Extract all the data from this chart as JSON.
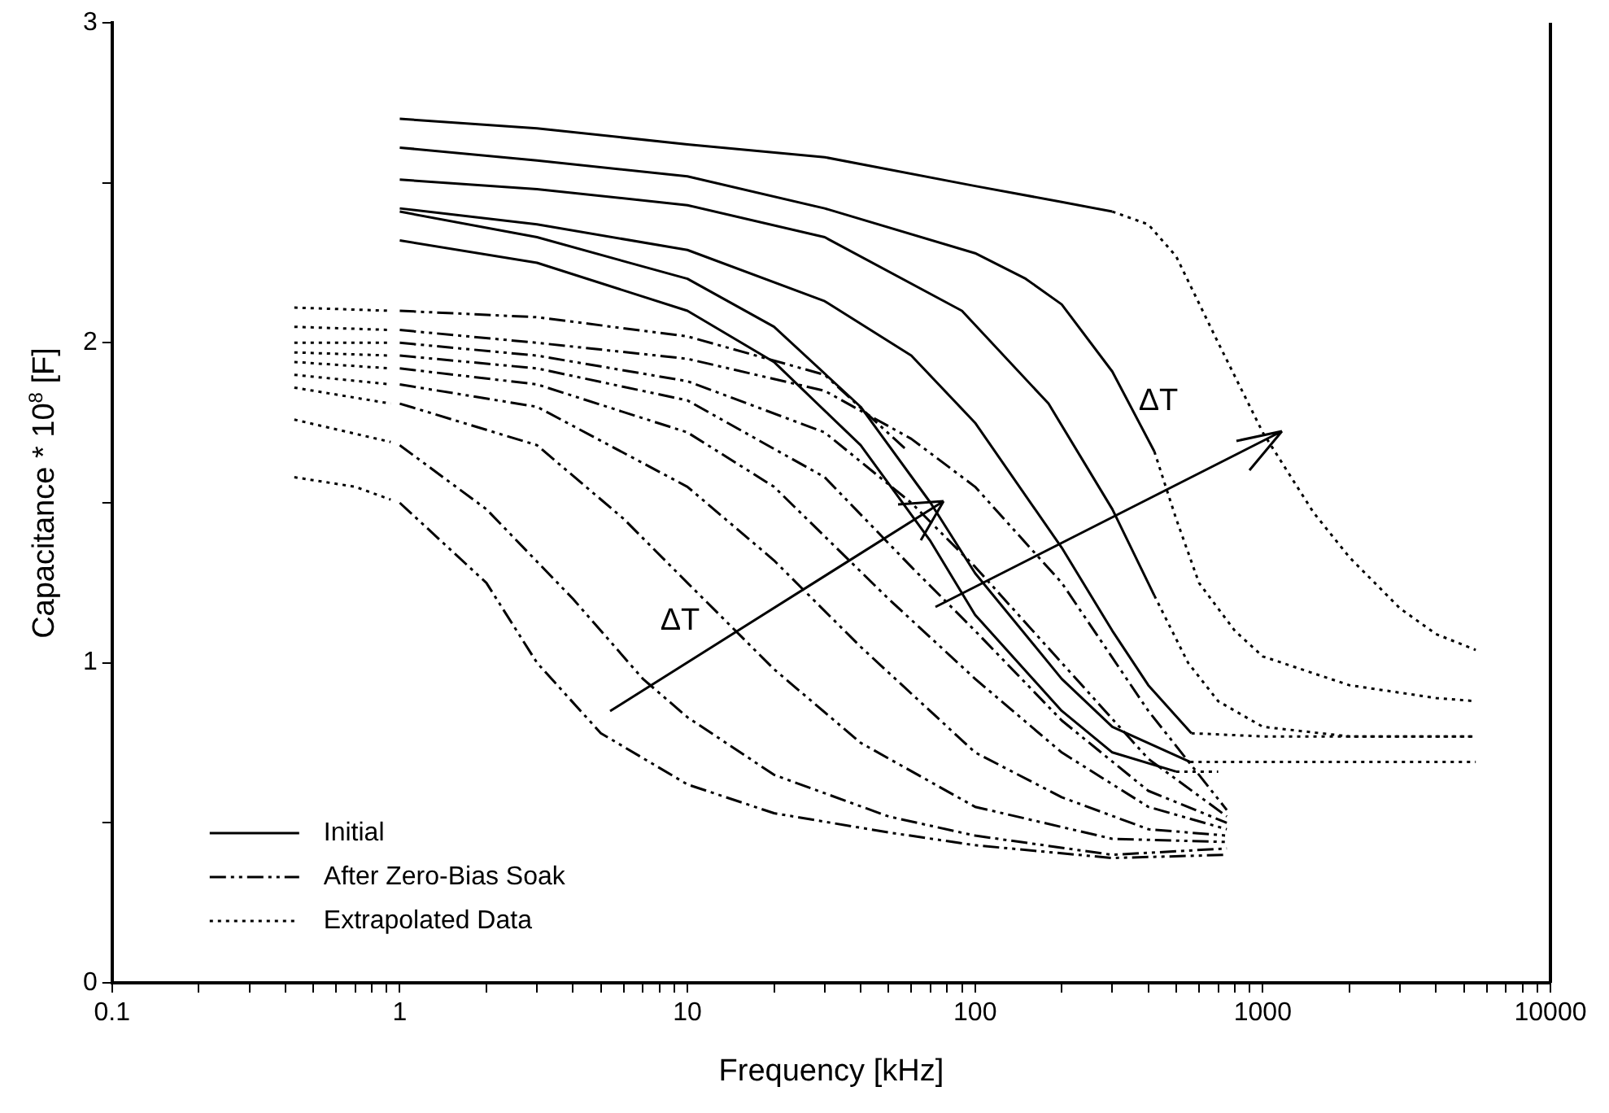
{
  "chart_data": {
    "type": "line",
    "xlabel": "Frequency [kHz]",
    "ylabel": "Capacitance * 10$^{8}$ [F]",
    "log": "x",
    "xlim": [
      0.1,
      10000
    ],
    "ylim": [
      0,
      3
    ],
    "xticks": [
      0.1,
      {
        "value": 0.2,
        "label": null
      },
      {
        "value": 0.3,
        "label": null
      },
      {
        "value": 0.4,
        "label": null
      },
      {
        "value": 0.5,
        "label": null
      },
      {
        "value": 0.6,
        "label": null
      },
      {
        "value": 0.7,
        "label": null
      },
      {
        "value": 0.8,
        "label": null
      },
      {
        "value": 0.9,
        "label": null
      },
      1,
      {
        "value": 2,
        "label": null
      },
      {
        "value": 3,
        "label": null
      },
      {
        "value": 4,
        "label": null
      },
      {
        "value": 5,
        "label": null
      },
      {
        "value": 6,
        "label": null
      },
      {
        "value": 7,
        "label": null
      },
      {
        "value": 8,
        "label": null
      },
      {
        "value": 9,
        "label": null
      },
      10,
      {
        "value": 20,
        "label": null
      },
      {
        "value": 30,
        "label": null
      },
      {
        "value": 40,
        "label": null
      },
      {
        "value": 50,
        "label": null
      },
      {
        "value": 60,
        "label": null
      },
      {
        "value": 70,
        "label": null
      },
      {
        "value": 80,
        "label": null
      },
      {
        "value": 90,
        "label": null
      },
      100,
      {
        "value": 200,
        "label": null
      },
      {
        "value": 300,
        "label": null
      },
      {
        "value": 400,
        "label": null
      },
      {
        "value": 500,
        "label": null
      },
      {
        "value": 600,
        "label": null
      },
      {
        "value": 700,
        "label": null
      },
      {
        "value": 800,
        "label": null
      },
      {
        "value": 900,
        "label": null
      },
      1000,
      {
        "value": 2000,
        "label": null
      },
      {
        "value": 3000,
        "label": null
      },
      {
        "value": 4000,
        "label": null
      },
      {
        "value": 5000,
        "label": null
      },
      {
        "value": 6000,
        "label": null
      },
      {
        "value": 7000,
        "label": null
      },
      {
        "value": 8000,
        "label": null
      },
      {
        "value": 9000,
        "label": null
      },
      10000
    ],
    "yticks": [
      0,
      {
        "value": 0.5,
        "label": null
      },
      1,
      {
        "value": 1.5,
        "label": null
      },
      2,
      {
        "value": 2.5,
        "label": null
      },
      3
    ],
    "grid": false,
    "legend": "bottom left",
    "marker": "none",
    "annotations": [
      "ΔT",
      "ΔT"
    ],
    "series": [
      {
        "name": "Initial",
        "color": "#000000",
        "line_style": "solid",
        "x": [
          1,
          3,
          10,
          30,
          100,
          200,
          300
        ],
        "values": [
          2.7,
          2.67,
          2.62,
          2.58,
          2.49,
          2.44,
          2.41
        ]
      },
      {
        "name": "After Zero-Bias Soak",
        "color": "#000000",
        "line_style": "dashdot",
        "x": [
          1,
          3,
          10,
          30,
          57
        ],
        "values": [
          2.1,
          2.08,
          2.02,
          1.9,
          1.67
        ]
      },
      {
        "name": "Extrapolated Data",
        "color": "#000000",
        "line_style": "dotted",
        "x": [
          300,
          400,
          500,
          700,
          1000,
          1500,
          2000,
          3000,
          4000,
          5500
        ],
        "values": [
          2.41,
          2.37,
          2.27,
          2.0,
          1.72,
          1.47,
          1.33,
          1.17,
          1.09,
          1.04
        ]
      },
      {
        "color": "#000000",
        "line_style": "solid",
        "x": [
          1,
          3,
          10,
          30,
          100,
          150,
          200,
          300,
          420
        ],
        "values": [
          2.61,
          2.57,
          2.52,
          2.42,
          2.28,
          2.2,
          2.12,
          1.91,
          1.66
        ]
      },
      {
        "color": "#000000",
        "line_style": "dotted",
        "x": [
          420,
          500,
          600,
          800,
          1000,
          2000,
          4000,
          5500
        ],
        "values": [
          1.66,
          1.45,
          1.25,
          1.1,
          1.02,
          0.93,
          0.89,
          0.88
        ]
      },
      {
        "color": "#000000",
        "line_style": "solid",
        "x": [
          1,
          3,
          10,
          30,
          90,
          180,
          300,
          420
        ],
        "values": [
          2.51,
          2.48,
          2.43,
          2.33,
          2.1,
          1.81,
          1.48,
          1.21
        ]
      },
      {
        "color": "#000000",
        "line_style": "dotted",
        "x": [
          420,
          550,
          700,
          1000,
          2000,
          5500
        ],
        "values": [
          1.21,
          1.0,
          0.88,
          0.8,
          0.77,
          0.77
        ]
      },
      {
        "color": "#000000",
        "line_style": "solid",
        "x": [
          1,
          3,
          10,
          30,
          60,
          100,
          200,
          300,
          400,
          565
        ],
        "values": [
          2.42,
          2.37,
          2.29,
          2.13,
          1.96,
          1.75,
          1.36,
          1.1,
          0.93,
          0.78
        ]
      },
      {
        "color": "#000000",
        "line_style": "dotted",
        "x": [
          565,
          1000,
          5500
        ],
        "values": [
          0.78,
          0.77,
          0.77
        ]
      },
      {
        "color": "#000000",
        "line_style": "solid",
        "x": [
          1,
          3,
          10,
          20,
          40,
          70,
          100,
          200,
          300,
          560
        ],
        "values": [
          2.41,
          2.33,
          2.2,
          2.05,
          1.8,
          1.5,
          1.28,
          0.95,
          0.8,
          0.69
        ]
      },
      {
        "color": "#000000",
        "line_style": "dotted",
        "x": [
          560,
          5500
        ],
        "values": [
          0.69,
          0.69
        ]
      },
      {
        "color": "#000000",
        "line_style": "solid",
        "x": [
          1,
          3,
          10,
          20,
          40,
          70,
          100,
          200,
          300,
          500
        ],
        "values": [
          2.32,
          2.25,
          2.1,
          1.94,
          1.68,
          1.38,
          1.15,
          0.85,
          0.72,
          0.66
        ]
      },
      {
        "color": "#000000",
        "line_style": "dotted",
        "x": [
          500,
          700
        ],
        "values": [
          0.66,
          0.66
        ]
      },
      {
        "color": "#000000",
        "line_style": "dotted",
        "x": [
          0.43,
          0.93
        ],
        "values": [
          2.11,
          2.1
        ]
      },
      {
        "color": "#000000",
        "line_style": "dotted",
        "x": [
          0.43,
          0.93
        ],
        "values": [
          2.05,
          2.04
        ]
      },
      {
        "color": "#000000",
        "line_style": "dashdot",
        "x": [
          1,
          3,
          10,
          30,
          60,
          100,
          200,
          400,
          750
        ],
        "values": [
          2.04,
          2.0,
          1.95,
          1.85,
          1.7,
          1.55,
          1.25,
          0.85,
          0.54
        ]
      },
      {
        "color": "#000000",
        "line_style": "dotted",
        "x": [
          0.43,
          0.93
        ],
        "values": [
          2.0,
          2.0
        ]
      },
      {
        "color": "#000000",
        "line_style": "dashdot",
        "x": [
          1,
          3,
          10,
          30,
          60,
          100,
          200,
          400,
          750
        ],
        "values": [
          2.0,
          1.96,
          1.88,
          1.72,
          1.5,
          1.3,
          1.0,
          0.7,
          0.52
        ]
      },
      {
        "color": "#000000",
        "line_style": "dotted",
        "x": [
          0.43,
          0.93
        ],
        "values": [
          1.97,
          1.96
        ]
      },
      {
        "color": "#000000",
        "line_style": "dashdot",
        "x": [
          1,
          3,
          10,
          30,
          60,
          100,
          200,
          400,
          750
        ],
        "values": [
          1.96,
          1.92,
          1.82,
          1.58,
          1.3,
          1.1,
          0.82,
          0.6,
          0.5
        ]
      },
      {
        "color": "#000000",
        "line_style": "dotted",
        "x": [
          0.43,
          0.93
        ],
        "values": [
          1.94,
          1.92
        ]
      },
      {
        "color": "#000000",
        "line_style": "dashdot",
        "x": [
          1,
          3,
          10,
          20,
          50,
          100,
          200,
          400,
          750
        ],
        "values": [
          1.92,
          1.87,
          1.72,
          1.55,
          1.2,
          0.95,
          0.72,
          0.55,
          0.48
        ]
      },
      {
        "color": "#000000",
        "line_style": "dotted",
        "x": [
          0.43,
          0.93
        ],
        "values": [
          1.9,
          1.87
        ]
      },
      {
        "color": "#000000",
        "line_style": "dashdot",
        "x": [
          1,
          3,
          10,
          20,
          40,
          100,
          200,
          400,
          750
        ],
        "values": [
          1.87,
          1.8,
          1.55,
          1.32,
          1.05,
          0.72,
          0.58,
          0.48,
          0.46
        ]
      },
      {
        "color": "#000000",
        "line_style": "dotted",
        "x": [
          0.43,
          0.93
        ],
        "values": [
          1.86,
          1.81
        ]
      },
      {
        "color": "#000000",
        "line_style": "dashdot",
        "x": [
          1,
          3,
          6,
          10,
          20,
          40,
          100,
          300,
          750
        ],
        "values": [
          1.81,
          1.68,
          1.45,
          1.25,
          0.98,
          0.75,
          0.55,
          0.45,
          0.44
        ]
      },
      {
        "color": "#000000",
        "line_style": "dotted",
        "x": [
          0.43,
          0.93
        ],
        "values": [
          1.76,
          1.69
        ]
      },
      {
        "color": "#000000",
        "line_style": "dashdot",
        "x": [
          1,
          2,
          4,
          7,
          10,
          20,
          50,
          100,
          300,
          750
        ],
        "values": [
          1.68,
          1.48,
          1.2,
          0.95,
          0.83,
          0.65,
          0.52,
          0.46,
          0.4,
          0.42
        ]
      },
      {
        "color": "#000000",
        "line_style": "dotted",
        "x": [
          0.43,
          0.7,
          0.93
        ],
        "values": [
          1.58,
          1.55,
          1.51
        ]
      },
      {
        "color": "#000000",
        "line_style": "dashdot",
        "x": [
          1,
          2,
          3,
          5,
          10,
          20,
          50,
          100,
          300,
          750
        ],
        "values": [
          1.5,
          1.25,
          1.0,
          0.78,
          0.62,
          0.53,
          0.47,
          0.43,
          0.39,
          0.4
        ]
      }
    ]
  }
}
